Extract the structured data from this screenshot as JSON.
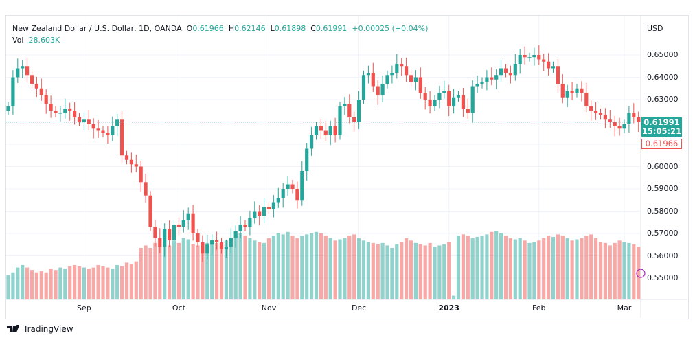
{
  "header": {
    "symbol": "New Zealand Dollar / U.S. Dollar, 1D, OANDA",
    "o_label": "O",
    "o": "0.61966",
    "h_label": "H",
    "h": "0.62146",
    "l_label": "L",
    "l": "0.61898",
    "c_label": "C",
    "c": "0.61991",
    "change": "+0.00025 (+0.04%)",
    "vol_label": "Vol",
    "vol": "28.603K"
  },
  "axis": {
    "currency": "USD",
    "current_price": "0.61991",
    "countdown": "15:05:21",
    "open_price": "0.61966"
  },
  "brand": "TradingView",
  "colors": {
    "up": "#26a69a",
    "down": "#ef5350"
  },
  "chart_data": {
    "type": "candlestick",
    "title": "New Zealand Dollar / U.S. Dollar, 1D, OANDA",
    "ylim": [
      0.545,
      0.655
    ],
    "yticks": [
      "0.65000",
      "0.64000",
      "0.63000",
      "0.62000",
      "0.61000",
      "0.60000",
      "0.59000",
      "0.58000",
      "0.57000",
      "0.56000",
      "0.55000"
    ],
    "xticks": [
      "Sep",
      "Oct",
      "Nov",
      "Dec",
      "2023",
      "Feb",
      "Mar"
    ],
    "xtick_index": [
      16,
      36,
      55,
      74,
      93,
      112,
      130
    ],
    "first_open": 0.625,
    "closes": [
      0.627,
      0.64,
      0.644,
      0.645,
      0.641,
      0.637,
      0.635,
      0.632,
      0.628,
      0.625,
      0.624,
      0.624,
      0.626,
      0.625,
      0.622,
      0.62,
      0.621,
      0.619,
      0.617,
      0.616,
      0.615,
      0.614,
      0.618,
      0.621,
      0.605,
      0.603,
      0.601,
      0.6,
      0.593,
      0.587,
      0.573,
      0.568,
      0.564,
      0.572,
      0.567,
      0.574,
      0.573,
      0.576,
      0.579,
      0.57,
      0.566,
      0.561,
      0.565,
      0.567,
      0.566,
      0.563,
      0.564,
      0.568,
      0.571,
      0.574,
      0.573,
      0.577,
      0.58,
      0.578,
      0.582,
      0.581,
      0.584,
      0.586,
      0.59,
      0.592,
      0.59,
      0.585,
      0.598,
      0.608,
      0.614,
      0.618,
      0.616,
      0.614,
      0.618,
      0.614,
      0.627,
      0.628,
      0.622,
      0.62,
      0.63,
      0.641,
      0.642,
      0.636,
      0.632,
      0.637,
      0.641,
      0.642,
      0.646,
      0.645,
      0.641,
      0.638,
      0.64,
      0.633,
      0.63,
      0.627,
      0.63,
      0.633,
      0.634,
      0.627,
      0.631,
      0.632,
      0.626,
      0.624,
      0.636,
      0.637,
      0.638,
      0.64,
      0.639,
      0.641,
      0.644,
      0.642,
      0.641,
      0.646,
      0.65,
      0.649,
      0.649,
      0.65,
      0.648,
      0.647,
      0.644,
      0.645,
      0.637,
      0.631,
      0.634,
      0.633,
      0.635,
      0.633,
      0.627,
      0.625,
      0.624,
      0.623,
      0.621,
      0.62,
      0.618,
      0.617,
      0.619,
      0.624,
      0.622,
      0.61991
    ],
    "volumes": [
      20,
      22,
      26,
      28,
      26,
      24,
      22,
      23,
      22,
      25,
      24,
      26,
      25,
      27,
      28,
      27,
      26,
      25,
      26,
      28,
      27,
      26,
      25,
      28,
      27,
      30,
      29,
      31,
      42,
      44,
      42,
      46,
      44,
      45,
      44,
      48,
      46,
      50,
      49,
      45,
      44,
      43,
      46,
      47,
      46,
      44,
      48,
      50,
      52,
      54,
      52,
      50,
      48,
      47,
      46,
      50,
      52,
      54,
      53,
      55,
      52,
      50,
      52,
      53,
      54,
      55,
      54,
      52,
      50,
      48,
      49,
      50,
      52,
      53,
      50,
      48,
      47,
      46,
      45,
      46,
      44,
      42,
      45,
      47,
      50,
      48,
      46,
      45,
      44,
      46,
      43,
      44,
      45,
      47,
      3,
      52,
      53,
      52,
      50,
      51,
      52,
      53,
      55,
      56,
      54,
      52,
      50,
      49,
      50,
      48,
      46,
      47,
      48,
      50,
      52,
      51,
      53,
      52,
      50,
      48,
      49,
      50,
      52,
      53,
      50,
      47,
      46,
      44,
      46,
      48,
      47,
      46,
      45,
      43
    ]
  }
}
